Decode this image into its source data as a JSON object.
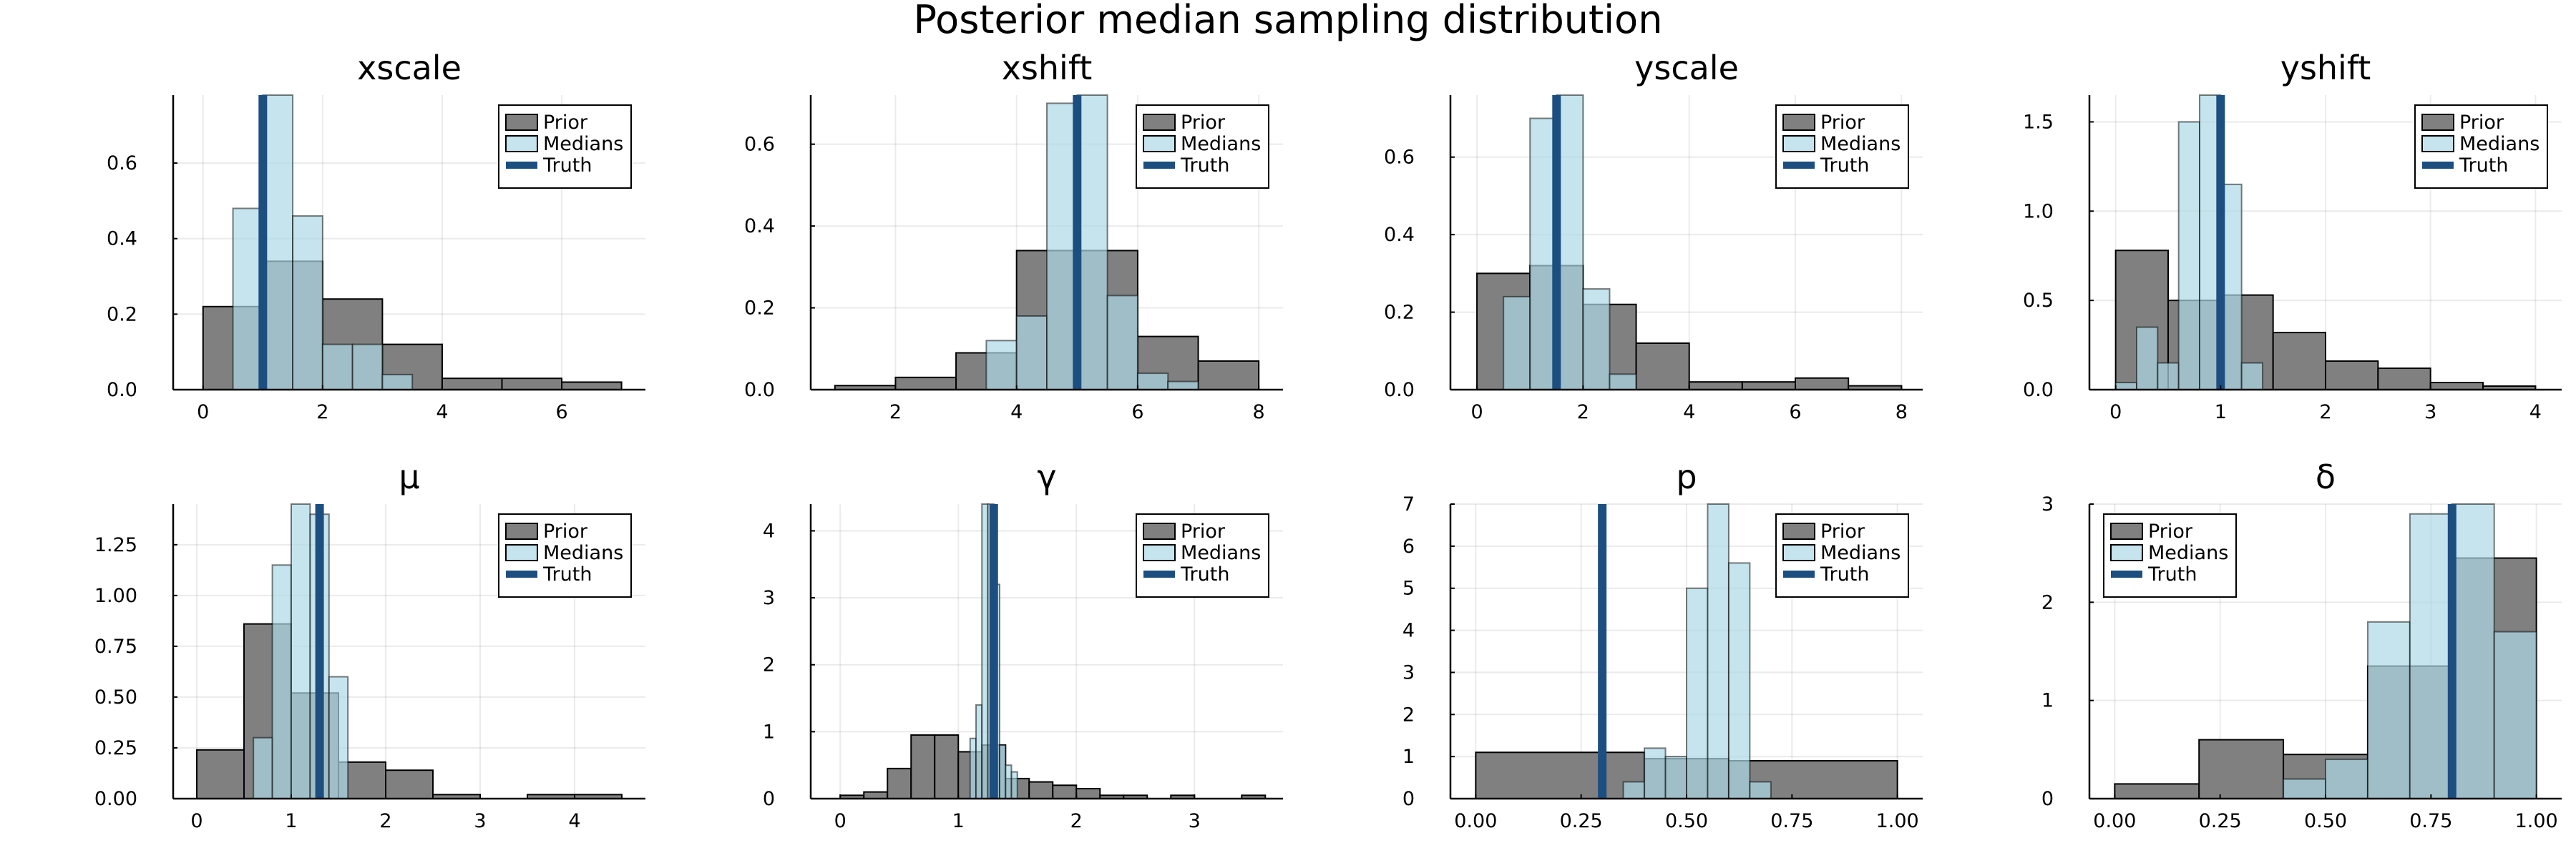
{
  "title": "Posterior median sampling distribution",
  "colors": {
    "prior": "#808080",
    "medians": "#add8e6",
    "truth": "#1c4e80"
  },
  "chart_data": [
    {
      "type": "bar",
      "title": "xscale",
      "legend": [
        "Prior",
        "Medians",
        "Truth"
      ],
      "legend_position": "top-right",
      "xlim": [
        -0.5,
        7.4
      ],
      "ylim": [
        0,
        0.78
      ],
      "grid": true,
      "xticks": [
        {
          "v": 0,
          "l": "0"
        },
        {
          "v": 2,
          "l": "2"
        },
        {
          "v": 4,
          "l": "4"
        },
        {
          "v": 6,
          "l": "6"
        }
      ],
      "yticks": [
        {
          "v": 0,
          "l": "0.0"
        },
        {
          "v": 0.2,
          "l": "0.2"
        },
        {
          "v": 0.4,
          "l": "0.4"
        },
        {
          "v": 0.6,
          "l": "0.6"
        }
      ],
      "prior": {
        "edges": [
          0,
          1,
          2,
          3,
          4,
          5,
          6,
          7
        ],
        "values": [
          0.22,
          0.34,
          0.24,
          0.12,
          0.03,
          0.03,
          0.02
        ]
      },
      "medians": {
        "edges": [
          0.5,
          1,
          1.5,
          2,
          2.5,
          3,
          3.5
        ],
        "values": [
          0.48,
          0.78,
          0.46,
          0.12,
          0.12,
          0.04
        ]
      },
      "truth": 1.0
    },
    {
      "type": "bar",
      "title": "xshift",
      "legend": [
        "Prior",
        "Medians",
        "Truth"
      ],
      "legend_position": "top-right",
      "xlim": [
        0.6,
        8.4
      ],
      "ylim": [
        0,
        0.72
      ],
      "grid": true,
      "xticks": [
        {
          "v": 2,
          "l": "2"
        },
        {
          "v": 4,
          "l": "4"
        },
        {
          "v": 6,
          "l": "6"
        },
        {
          "v": 8,
          "l": "8"
        }
      ],
      "yticks": [
        {
          "v": 0,
          "l": "0.0"
        },
        {
          "v": 0.2,
          "l": "0.2"
        },
        {
          "v": 0.4,
          "l": "0.4"
        },
        {
          "v": 0.6,
          "l": "0.6"
        }
      ],
      "prior": {
        "edges": [
          1,
          2,
          3,
          4,
          5,
          6,
          7,
          8
        ],
        "values": [
          0.01,
          0.03,
          0.09,
          0.34,
          0.34,
          0.13,
          0.07
        ]
      },
      "medians": {
        "edges": [
          3.5,
          4,
          4.5,
          5,
          5.5,
          6,
          6.5,
          7
        ],
        "values": [
          0.12,
          0.18,
          0.7,
          0.72,
          0.23,
          0.04,
          0.02
        ]
      },
      "truth": 5.0
    },
    {
      "type": "bar",
      "title": "yscale",
      "legend": [
        "Prior",
        "Medians",
        "Truth"
      ],
      "legend_position": "top-right",
      "xlim": [
        -0.5,
        8.4
      ],
      "ylim": [
        0,
        0.76
      ],
      "grid": true,
      "xticks": [
        {
          "v": 0,
          "l": "0"
        },
        {
          "v": 2,
          "l": "2"
        },
        {
          "v": 4,
          "l": "4"
        },
        {
          "v": 6,
          "l": "6"
        },
        {
          "v": 8,
          "l": "8"
        }
      ],
      "yticks": [
        {
          "v": 0,
          "l": "0.0"
        },
        {
          "v": 0.2,
          "l": "0.2"
        },
        {
          "v": 0.4,
          "l": "0.4"
        },
        {
          "v": 0.6,
          "l": "0.6"
        }
      ],
      "prior": {
        "edges": [
          0,
          1,
          2,
          3,
          4,
          5,
          6,
          7,
          8
        ],
        "values": [
          0.3,
          0.32,
          0.22,
          0.12,
          0.02,
          0.02,
          0.03,
          0.01
        ]
      },
      "medians": {
        "edges": [
          0.5,
          1,
          1.5,
          2,
          2.5,
          3
        ],
        "values": [
          0.24,
          0.7,
          0.76,
          0.26,
          0.04
        ]
      },
      "truth": 1.5
    },
    {
      "type": "bar",
      "title": "yshift",
      "legend": [
        "Prior",
        "Medians",
        "Truth"
      ],
      "legend_position": "top-right",
      "xlim": [
        -0.25,
        4.25
      ],
      "ylim": [
        0,
        1.65
      ],
      "grid": true,
      "xticks": [
        {
          "v": 0,
          "l": "0"
        },
        {
          "v": 1,
          "l": "1"
        },
        {
          "v": 2,
          "l": "2"
        },
        {
          "v": 3,
          "l": "3"
        },
        {
          "v": 4,
          "l": "4"
        }
      ],
      "yticks": [
        {
          "v": 0,
          "l": "0.0"
        },
        {
          "v": 0.5,
          "l": "0.5"
        },
        {
          "v": 1,
          "l": "1.0"
        },
        {
          "v": 1.5,
          "l": "1.5"
        }
      ],
      "prior": {
        "edges": [
          0,
          0.5,
          1,
          1.5,
          2,
          2.5,
          3,
          3.5,
          4
        ],
        "values": [
          0.78,
          0.5,
          0.53,
          0.32,
          0.16,
          0.12,
          0.04,
          0.02
        ]
      },
      "medians": {
        "edges": [
          0,
          0.2,
          0.4,
          0.6,
          0.8,
          1,
          1.2,
          1.4
        ],
        "values": [
          0.04,
          0.35,
          0.15,
          1.5,
          1.65,
          1.15,
          0.15
        ]
      },
      "truth": 1.0
    },
    {
      "type": "bar",
      "title": "μ",
      "legend": [
        "Prior",
        "Medians",
        "Truth"
      ],
      "legend_position": "top-right",
      "xlim": [
        -0.25,
        4.75
      ],
      "ylim": [
        0,
        1.45
      ],
      "grid": true,
      "xticks": [
        {
          "v": 0,
          "l": "0"
        },
        {
          "v": 1,
          "l": "1"
        },
        {
          "v": 2,
          "l": "2"
        },
        {
          "v": 3,
          "l": "3"
        },
        {
          "v": 4,
          "l": "4"
        }
      ],
      "yticks": [
        {
          "v": 0,
          "l": "0.00"
        },
        {
          "v": 0.25,
          "l": "0.25"
        },
        {
          "v": 0.5,
          "l": "0.50"
        },
        {
          "v": 0.75,
          "l": "0.75"
        },
        {
          "v": 1,
          "l": "1.00"
        },
        {
          "v": 1.25,
          "l": "1.25"
        }
      ],
      "prior": {
        "edges": [
          0,
          0.5,
          1,
          1.5,
          2,
          2.5,
          3,
          3.5,
          4,
          4.5
        ],
        "values": [
          0.24,
          0.86,
          0.52,
          0.18,
          0.14,
          0.02,
          0.0,
          0.02,
          0.02
        ]
      },
      "medians": {
        "edges": [
          0.6,
          0.8,
          1,
          1.2,
          1.4,
          1.6
        ],
        "values": [
          0.3,
          1.15,
          1.45,
          1.4,
          0.6
        ]
      },
      "truth": 1.3
    },
    {
      "type": "bar",
      "title": "γ",
      "legend": [
        "Prior",
        "Medians",
        "Truth"
      ],
      "legend_position": "top-right",
      "xlim": [
        -0.25,
        3.75
      ],
      "ylim": [
        0,
        4.4
      ],
      "grid": true,
      "xticks": [
        {
          "v": 0,
          "l": "0"
        },
        {
          "v": 1,
          "l": "1"
        },
        {
          "v": 2,
          "l": "2"
        },
        {
          "v": 3,
          "l": "3"
        }
      ],
      "yticks": [
        {
          "v": 0,
          "l": "0"
        },
        {
          "v": 1,
          "l": "1"
        },
        {
          "v": 2,
          "l": "2"
        },
        {
          "v": 3,
          "l": "3"
        },
        {
          "v": 4,
          "l": "4"
        }
      ],
      "prior": {
        "edges": [
          0,
          0.2,
          0.4,
          0.6,
          0.8,
          1,
          1.2,
          1.4,
          1.6,
          1.8,
          2,
          2.2,
          2.4,
          2.6,
          2.8,
          3,
          3.2,
          3.4,
          3.6
        ],
        "values": [
          0.05,
          0.1,
          0.45,
          0.95,
          0.95,
          0.7,
          0.8,
          0.3,
          0.25,
          0.2,
          0.15,
          0.05,
          0.05,
          0.0,
          0.05,
          0.0,
          0.0,
          0.05
        ]
      },
      "medians": {
        "edges": [
          1.1,
          1.15,
          1.2,
          1.25,
          1.3,
          1.35,
          1.4,
          1.45,
          1.5
        ],
        "values": [
          0.9,
          1.4,
          4.4,
          4.4,
          3.2,
          0.8,
          0.5,
          0.4
        ]
      },
      "truth": 1.3
    },
    {
      "type": "bar",
      "title": "p",
      "legend": [
        "Prior",
        "Medians",
        "Truth"
      ],
      "legend_position": "top-right",
      "xlim": [
        -0.06,
        1.06
      ],
      "ylim": [
        0,
        7
      ],
      "grid": true,
      "xticks": [
        {
          "v": 0,
          "l": "0.00"
        },
        {
          "v": 0.25,
          "l": "0.25"
        },
        {
          "v": 0.5,
          "l": "0.50"
        },
        {
          "v": 0.75,
          "l": "0.75"
        },
        {
          "v": 1,
          "l": "1.00"
        }
      ],
      "yticks": [
        {
          "v": 0,
          "l": "0"
        },
        {
          "v": 1,
          "l": "1"
        },
        {
          "v": 2,
          "l": "2"
        },
        {
          "v": 3,
          "l": "3"
        },
        {
          "v": 4,
          "l": "4"
        },
        {
          "v": 5,
          "l": "5"
        },
        {
          "v": 6,
          "l": "6"
        },
        {
          "v": 7,
          "l": "7"
        }
      ],
      "prior": {
        "edges": [
          0,
          0.4,
          0.6,
          1
        ],
        "values": [
          1.1,
          0.95,
          0.9
        ]
      },
      "medians": {
        "edges": [
          0.35,
          0.4,
          0.45,
          0.5,
          0.55,
          0.6,
          0.65,
          0.7
        ],
        "values": [
          0.4,
          1.2,
          1.0,
          5.0,
          7.0,
          5.6,
          0.4
        ]
      },
      "truth": 0.3
    },
    {
      "type": "bar",
      "title": "δ",
      "legend": [
        "Prior",
        "Medians",
        "Truth"
      ],
      "legend_position": "top-left",
      "xlim": [
        -0.06,
        1.06
      ],
      "ylim": [
        0,
        3
      ],
      "grid": true,
      "xticks": [
        {
          "v": 0,
          "l": "0.00"
        },
        {
          "v": 0.25,
          "l": "0.25"
        },
        {
          "v": 0.5,
          "l": "0.50"
        },
        {
          "v": 0.75,
          "l": "0.75"
        },
        {
          "v": 1,
          "l": "1.00"
        }
      ],
      "yticks": [
        {
          "v": 0,
          "l": "0"
        },
        {
          "v": 1,
          "l": "1"
        },
        {
          "v": 2,
          "l": "2"
        },
        {
          "v": 3,
          "l": "3"
        }
      ],
      "prior": {
        "edges": [
          0,
          0.2,
          0.4,
          0.6,
          0.8,
          1
        ],
        "values": [
          0.15,
          0.6,
          0.45,
          1.35,
          2.45
        ]
      },
      "medians": {
        "edges": [
          0.4,
          0.5,
          0.6,
          0.7,
          0.8,
          0.9,
          1
        ],
        "values": [
          0.2,
          0.4,
          1.8,
          2.9,
          3.0,
          1.7
        ]
      },
      "truth": 0.8
    }
  ]
}
